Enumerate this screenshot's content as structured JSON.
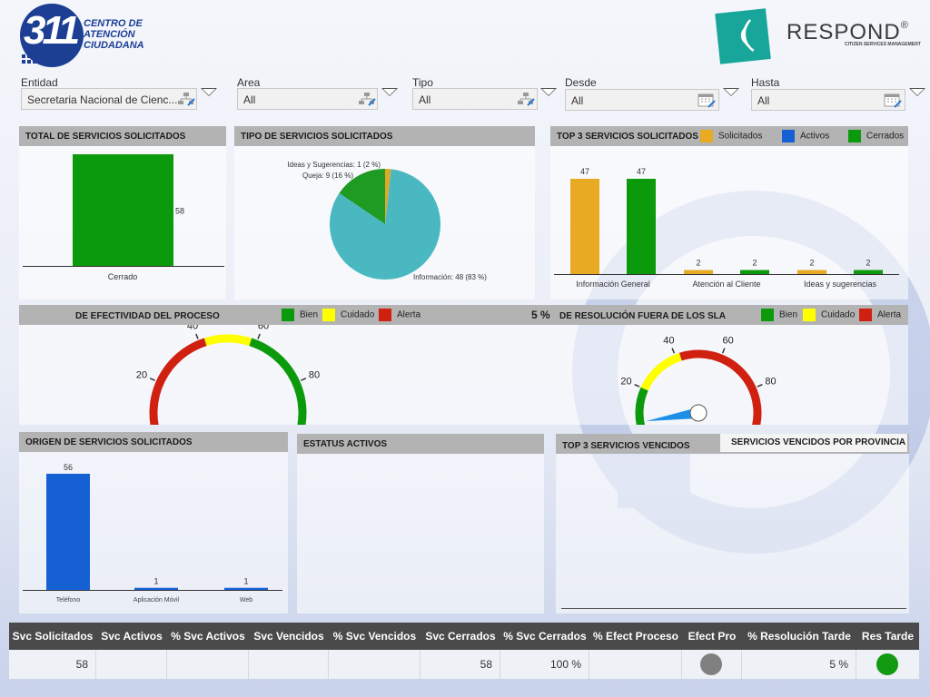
{
  "header": {
    "logo_number": "311",
    "logo_text_line1": "CENTRO DE",
    "logo_text_line2": "ATENCIÓN",
    "logo_text_line3": "CIUDADANA",
    "brand_name": "RESPOND",
    "brand_reg": "®",
    "brand_tagline": "CITIZEN SERVICES MANAGEMENT"
  },
  "filters": {
    "entidad": {
      "label": "Entidad",
      "value": "Secretaria Nacional de Cienc..."
    },
    "area": {
      "label": "Area",
      "value": "All"
    },
    "tipo": {
      "label": "Tipo",
      "value": "All"
    },
    "desde": {
      "label": "Desde",
      "value": "All"
    },
    "hasta": {
      "label": "Hasta",
      "value": "All"
    }
  },
  "panels": {
    "total": {
      "title": "TOTAL DE SERVICIOS SOLICITADOS"
    },
    "tipo": {
      "title": "TIPO DE SERVICIOS SOLICITADOS"
    },
    "top3": {
      "title": "TOP 3 SERVICIOS SOLICITADOS"
    },
    "efectividad": {
      "title": "DE EFECTIVIDAD DEL PROCESO"
    },
    "resolucion": {
      "title": "DE RESOLUCIÓN FUERA DE LOS SLA",
      "pct": "5 %"
    },
    "origen": {
      "title": "ORIGEN DE SERVICIOS SOLICITADOS"
    },
    "estatus": {
      "title": "ESTATUS ACTIVOS"
    },
    "vencidos": {
      "title": "TOP 3 SERVICIOS VENCIDOS",
      "tab_label": "SERVICIOS VENCIDOS POR PROVINCIA"
    }
  },
  "legends": {
    "top3": [
      "Solicitados",
      "Activos",
      "Cerrados"
    ],
    "gauge": [
      "Bien",
      "Cuidado",
      "Alerta"
    ]
  },
  "colors": {
    "green": "#0b9a0b",
    "orange": "#e8a923",
    "blue": "#1561d4",
    "teal": "#4ab8c1",
    "pie_green": "#1f9a23",
    "pie_yellow": "#e0a828",
    "yellow": "#ffff00",
    "red": "#d02010",
    "gray": "#888888"
  },
  "chart_data": [
    {
      "type": "bar",
      "categories": [
        "Cerrado"
      ],
      "values": [
        58
      ],
      "ylim": [
        0,
        58
      ]
    },
    {
      "type": "pie",
      "labels": [
        "Información",
        "Queja",
        "Ideas y Sugerencias"
      ],
      "values": [
        48,
        9,
        1
      ],
      "percents": [
        83,
        16,
        2
      ],
      "data_labels": [
        "Información: 48 (83 %)",
        "Queja: 9 (16 %)",
        "Ideas y Sugerencias: 1 (2 %)"
      ]
    },
    {
      "type": "bar",
      "categories": [
        "Información General",
        "Atención al Cliente",
        "Ideas y sugerencias"
      ],
      "series": [
        {
          "name": "Solicitados",
          "values": [
            47,
            2,
            2
          ]
        },
        {
          "name": "Activos",
          "values": [
            0,
            0,
            0
          ]
        },
        {
          "name": "Cerrados",
          "values": [
            47,
            2,
            2
          ]
        }
      ],
      "ylim": [
        0,
        55
      ]
    },
    {
      "type": "gauge",
      "ticks": [
        "0",
        "20",
        "40",
        "60",
        "80",
        "100"
      ],
      "ranges": [
        {
          "from": 0,
          "to": 42,
          "band": "Alerta"
        },
        {
          "from": 42,
          "to": 58,
          "band": "Cuidado"
        },
        {
          "from": 58,
          "to": 100,
          "band": "Bien"
        }
      ]
    },
    {
      "type": "gauge",
      "ticks": [
        "0",
        "20",
        "40",
        "60",
        "80",
        "100"
      ],
      "value": 5,
      "ranges": [
        {
          "from": 0,
          "to": 20,
          "band": "Bien"
        },
        {
          "from": 20,
          "to": 42,
          "band": "Cuidado"
        },
        {
          "from": 42,
          "to": 100,
          "band": "Alerta"
        }
      ]
    },
    {
      "type": "bar",
      "categories": [
        "Teléfono",
        "Aplicación Móvil",
        "Web"
      ],
      "values": [
        56,
        1,
        1
      ],
      "ylim": [
        0,
        60
      ]
    }
  ],
  "table": {
    "headers": [
      "Svc Solicitados",
      "Svc Activos",
      "% Svc Activos",
      "Svc Vencidos",
      "% Svc Vencidos",
      "Svc Cerrados",
      "% Svc Cerrados",
      "% Efect Proceso",
      "Efect Pro",
      "% Resolución Tarde",
      "Res Tarde"
    ],
    "row": [
      "58",
      "",
      "",
      "",
      "",
      "58",
      "100 %",
      "",
      "",
      "5 %",
      ""
    ],
    "indicators": {
      "efect_pro": "#808080",
      "res_tarde": "#129a12"
    }
  }
}
